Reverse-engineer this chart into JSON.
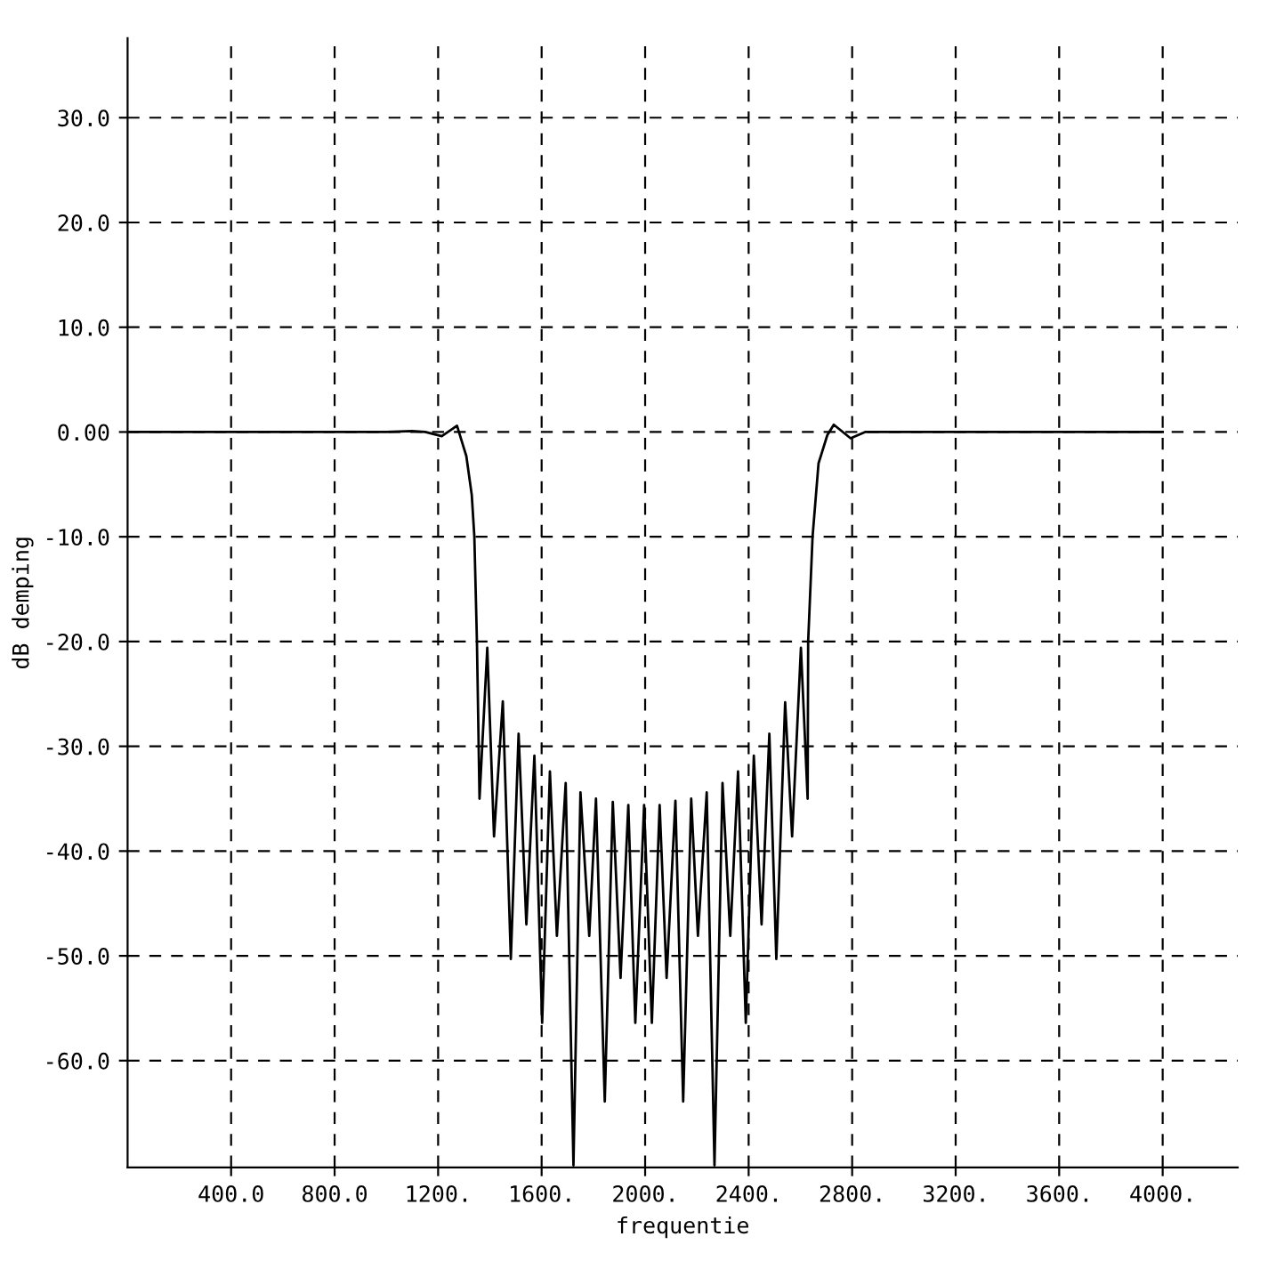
{
  "chart_data": {
    "type": "line",
    "xlabel": "frequentie",
    "ylabel": "dB demping",
    "xlim": [
      0,
      4290
    ],
    "ylim": [
      -70.2,
      37.6
    ],
    "xticks": [
      {
        "value": 400,
        "label": "400.0"
      },
      {
        "value": 800,
        "label": "800.0"
      },
      {
        "value": 1200,
        "label": "1200."
      },
      {
        "value": 1600,
        "label": "1600."
      },
      {
        "value": 2000,
        "label": "2000."
      },
      {
        "value": 2400,
        "label": "2400."
      },
      {
        "value": 2800,
        "label": "2800."
      },
      {
        "value": 3200,
        "label": "3200."
      },
      {
        "value": 3600,
        "label": "3600."
      },
      {
        "value": 4000,
        "label": "4000."
      }
    ],
    "yticks": [
      {
        "value": 30,
        "label": "30.0"
      },
      {
        "value": 20,
        "label": "20.0"
      },
      {
        "value": 10,
        "label": "10.0"
      },
      {
        "value": 0,
        "label": "0.00"
      },
      {
        "value": -10,
        "label": "-10.0"
      },
      {
        "value": -20,
        "label": "-20.0"
      },
      {
        "value": -30,
        "label": "-30.0"
      },
      {
        "value": -40,
        "label": "-40.0"
      },
      {
        "value": -50,
        "label": "-50.0"
      },
      {
        "value": -60,
        "label": "-60.0"
      }
    ],
    "grid": true,
    "line_style": "solid",
    "marker": "none",
    "legend": false,
    "series": [
      {
        "color": "#000000",
        "x": [
          0,
          400,
          800,
          1000,
          1100,
          1150,
          1214,
          1273,
          1309,
          1330,
          1340,
          1350,
          1360,
          1390,
          1416,
          1450,
          1481,
          1511,
          1541,
          1572,
          1602,
          1632,
          1659,
          1693,
          1723,
          1750,
          1784,
          1810,
          1844,
          1875,
          1905,
          1935,
          1962,
          1996,
          2026,
          2056,
          2083,
          2117,
          2147,
          2178,
          2204,
          2238,
          2268,
          2299,
          2329,
          2359,
          2389,
          2420,
          2450,
          2480,
          2507,
          2541,
          2568,
          2602,
          2628,
          2630,
          2647,
          2670,
          2704,
          2729,
          2794,
          2850,
          3000,
          3500,
          4000
        ],
        "values": [
          0,
          0,
          0,
          0,
          0.1,
          0,
          -0.4,
          0.6,
          -2.3,
          -6,
          -10,
          -20,
          -35,
          -20.6,
          -38.6,
          -25.7,
          -50.3,
          -28.8,
          -47,
          -30.9,
          -56.4,
          -32.4,
          -48.1,
          -33.5,
          -70,
          -34.4,
          -48.1,
          -35,
          -63.9,
          -35.3,
          -52.1,
          -35.6,
          -56.4,
          -35.6,
          -56.4,
          -35.6,
          -52.1,
          -35.2,
          -63.9,
          -35,
          -48.1,
          -34.4,
          -70,
          -33.5,
          -48.1,
          -32.4,
          -56.4,
          -30.9,
          -47,
          -28.8,
          -50.3,
          -25.8,
          -38.6,
          -20.6,
          -35,
          -20,
          -10,
          -3,
          -0.3,
          0.7,
          -0.6,
          0,
          0,
          0,
          0
        ]
      }
    ]
  }
}
